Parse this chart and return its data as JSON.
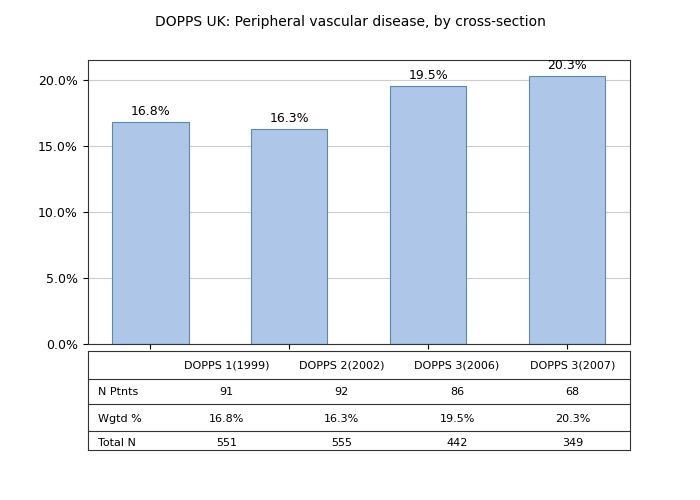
{
  "categories": [
    "DOPPS 1(1999)",
    "DOPPS 2(2002)",
    "DOPPS 3(2006)",
    "DOPPS 3(2007)"
  ],
  "values": [
    16.8,
    16.3,
    19.5,
    20.3
  ],
  "bar_color": "#aec6e8",
  "bar_edge_color": "#5a8ab0",
  "ylim": [
    0,
    21.5
  ],
  "yticks": [
    0.0,
    5.0,
    10.0,
    15.0,
    20.0
  ],
  "ytick_labels": [
    "0.0%",
    "5.0%",
    "10.0%",
    "15.0%",
    "20.0%"
  ],
  "value_labels": [
    "16.8%",
    "16.3%",
    "19.5%",
    "20.3%"
  ],
  "table_rows": {
    "N Ptnts": [
      "91",
      "92",
      "86",
      "68"
    ],
    "Wgtd %": [
      "16.8%",
      "16.3%",
      "19.5%",
      "20.3%"
    ],
    "Total N": [
      "551",
      "555",
      "442",
      "349"
    ]
  },
  "title": "DOPPS UK: Peripheral vascular disease, by cross-section",
  "background_color": "#ffffff",
  "grid_color": "#cccccc",
  "line_color": "#333333"
}
